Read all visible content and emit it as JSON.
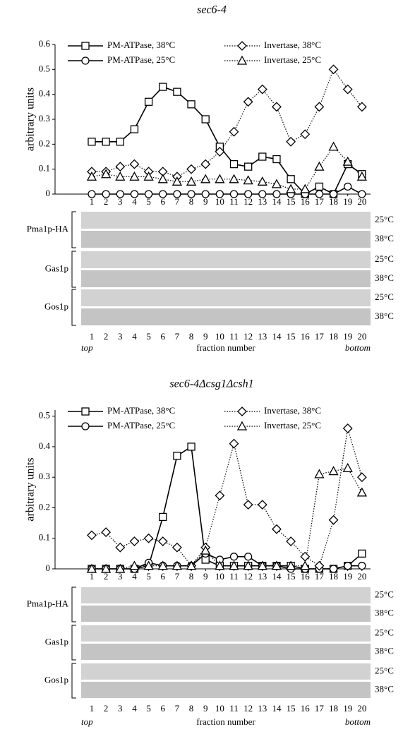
{
  "chart_data": [
    {
      "type": "line",
      "title": "sec6-4",
      "ylabel": "arbitrary units",
      "categories": [
        "1",
        "2",
        "3",
        "4",
        "5",
        "6",
        "7",
        "8",
        "9",
        "10",
        "11",
        "12",
        "13",
        "14",
        "15",
        "16",
        "17",
        "18",
        "19",
        "20"
      ],
      "ylim": [
        0,
        0.6
      ],
      "yticks": [
        0,
        0.1,
        0.2,
        0.3,
        0.4,
        0.5,
        0.6
      ],
      "series": [
        {
          "name": "PM-ATPase, 38°C",
          "color": "#000000",
          "marker": "square",
          "dash": "solid",
          "values": [
            0.21,
            0.21,
            0.21,
            0.26,
            0.37,
            0.43,
            0.41,
            0.36,
            0.3,
            0.19,
            0.12,
            0.11,
            0.15,
            0.14,
            0.06,
            0,
            0.03,
            0,
            0.12,
            0.08
          ]
        },
        {
          "name": "PM-ATPase, 25°C",
          "color": "#000000",
          "marker": "circle",
          "dash": "solid",
          "values": [
            0,
            0,
            0,
            0,
            0,
            0,
            0,
            0,
            0,
            0,
            0,
            0,
            0,
            0,
            0,
            0,
            0,
            0,
            0.03,
            0
          ]
        },
        {
          "name": "Invertase, 38°C",
          "color": "#000000",
          "marker": "diamond",
          "dash": "dotted",
          "values": [
            0.09,
            0.09,
            0.11,
            0.12,
            0.09,
            0.09,
            0.07,
            0.1,
            0.12,
            0.17,
            0.25,
            0.37,
            0.42,
            0.35,
            0.21,
            0.24,
            0.35,
            0.5,
            0.42,
            0.35
          ]
        },
        {
          "name": "Invertase, 25°C",
          "color": "#000000",
          "marker": "triangle",
          "dash": "dotted",
          "values": [
            0.07,
            0.08,
            0.07,
            0.07,
            0.07,
            0.06,
            0.05,
            0.05,
            0.06,
            0.06,
            0.06,
            0.055,
            0.05,
            0.04,
            0.02,
            0.02,
            0.11,
            0.19,
            0.13,
            0.07
          ]
        }
      ],
      "blots": [
        {
          "name": "Pma1p-HA",
          "rows": [
            "25°C",
            "38°C"
          ]
        },
        {
          "name": "Gas1p",
          "rows": [
            "25°C",
            "38°C"
          ]
        },
        {
          "name": "Gos1p",
          "rows": [
            "25°C",
            "38°C"
          ]
        }
      ],
      "xlabel": "fraction number",
      "x_end_labels": [
        "top",
        "bottom"
      ]
    },
    {
      "type": "line",
      "title": "sec6-4Δcsg1Δcsh1",
      "ylabel": "arbitrary units",
      "categories": [
        "1",
        "2",
        "3",
        "4",
        "5",
        "6",
        "7",
        "8",
        "9",
        "10",
        "11",
        "12",
        "13",
        "14",
        "15",
        "16",
        "17",
        "18",
        "19",
        "20"
      ],
      "ylim": [
        0,
        0.52
      ],
      "yticks": [
        0,
        0.1,
        0.2,
        0.3,
        0.4,
        0.5
      ],
      "series": [
        {
          "name": "PM-ATPase, 38°C",
          "color": "#000000",
          "marker": "square",
          "dash": "solid",
          "values": [
            0,
            0,
            0,
            0,
            0.01,
            0.17,
            0.37,
            0.4,
            0.03,
            0.01,
            0.01,
            0.01,
            0.01,
            0.01,
            0.01,
            0,
            0,
            0,
            0.01,
            0.05
          ]
        },
        {
          "name": "PM-ATPase, 25°C",
          "color": "#000000",
          "marker": "circle",
          "dash": "solid",
          "values": [
            0,
            0,
            0,
            0,
            0.02,
            0.01,
            0.01,
            0.01,
            0.05,
            0.03,
            0.04,
            0.04,
            0.01,
            0.01,
            0,
            0,
            0,
            0,
            0.01,
            0.01
          ]
        },
        {
          "name": "Invertase, 38°C",
          "color": "#000000",
          "marker": "diamond",
          "dash": "dotted",
          "values": [
            0.11,
            0.12,
            0.07,
            0.09,
            0.1,
            0.09,
            0.07,
            0.01,
            0.07,
            0.24,
            0.41,
            0.21,
            0.21,
            0.13,
            0.09,
            0.04,
            0.01,
            0.16,
            0.46,
            0.3
          ]
        },
        {
          "name": "Invertase, 25°C",
          "color": "#000000",
          "marker": "triangle",
          "dash": "dotted",
          "values": [
            0,
            0,
            0,
            0.01,
            0.01,
            0.01,
            0.01,
            0.01,
            0.06,
            0.01,
            0.01,
            0.01,
            0.01,
            0.01,
            0.01,
            0.01,
            0.31,
            0.32,
            0.33,
            0.25
          ]
        }
      ],
      "blots": [
        {
          "name": "Pma1p-HA",
          "rows": [
            "25°C",
            "38°C"
          ]
        },
        {
          "name": "Gas1p",
          "rows": [
            "25°C",
            "38°C"
          ]
        },
        {
          "name": "Gos1p",
          "rows": [
            "25°C",
            "38°C"
          ]
        }
      ],
      "xlabel": "fraction number",
      "x_end_labels": [
        "top",
        "bottom"
      ]
    }
  ]
}
